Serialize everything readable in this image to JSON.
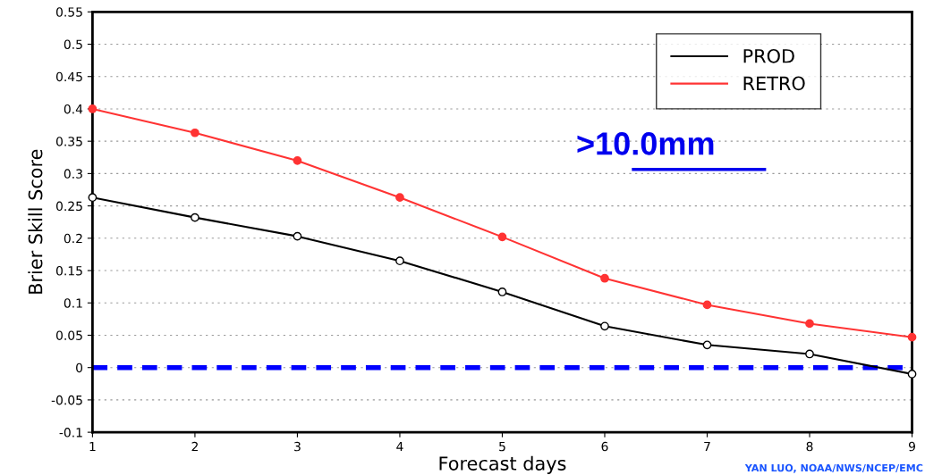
{
  "chart_data": {
    "type": "line",
    "xlabel": "Forecast days",
    "ylabel": "Brier Skill Score",
    "x": [
      1,
      2,
      3,
      4,
      5,
      6,
      7,
      8,
      9
    ],
    "series": [
      {
        "name": "PROD",
        "color": "#000000",
        "values": [
          0.263,
          0.232,
          0.203,
          0.165,
          0.117,
          0.064,
          0.035,
          0.021,
          -0.01
        ]
      },
      {
        "name": "RETRO",
        "color": "#ff3333",
        "values": [
          0.4,
          0.363,
          0.32,
          0.263,
          0.202,
          0.138,
          0.097,
          0.068,
          0.047
        ]
      }
    ],
    "xlim": [
      1,
      9
    ],
    "xticks": [
      1,
      2,
      3,
      4,
      5,
      6,
      7,
      8,
      9
    ],
    "ylim": [
      -0.1,
      0.55
    ],
    "yticks": [
      -0.1,
      -0.05,
      0,
      0.05,
      0.1,
      0.15,
      0.2,
      0.25,
      0.3,
      0.35,
      0.4,
      0.45,
      0.5,
      0.55
    ],
    "ref_lines": [
      {
        "axis": "y",
        "value": 0,
        "color": "#0000ff",
        "line_style": "dashed"
      }
    ],
    "annotations": [
      ">10.0mm",
      "YAN LUO, NOAA/NWS/NCEP/EMC"
    ],
    "grid": "y",
    "legend": "top right",
    "marker": "circle",
    "line_style": "solid"
  }
}
